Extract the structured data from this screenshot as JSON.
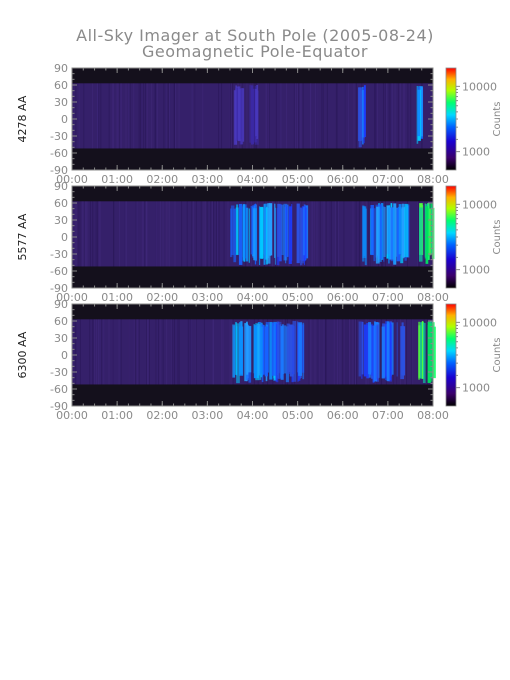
{
  "title": "All-Sky Imager at South Pole (2005-08-24)",
  "subtitle": "Geomagnetic Pole-Equator",
  "chart_data": [
    {
      "type": "heatmap",
      "ylabel": "4278 AA",
      "x_ticks": [
        "00:00",
        "01:00",
        "02:00",
        "03:00",
        "04:00",
        "05:00",
        "06:00",
        "07:00",
        "08:00"
      ],
      "y_ticks": [
        "90",
        "60",
        "30",
        "0",
        "-30",
        "-60",
        "-90"
      ],
      "xlim": [
        "00:00",
        "08:00"
      ],
      "ylim": [
        -90,
        90
      ],
      "colorbar": {
        "label": "Counts",
        "ticks": [
          "10000",
          "1000"
        ],
        "scale": "log"
      },
      "features": [
        {
          "t_start": "03:35",
          "t_end": "04:05",
          "level": "weak"
        },
        {
          "t_start": "06:20",
          "t_end": "06:30",
          "level": "medium"
        },
        {
          "t_start": "07:35",
          "t_end": "07:45",
          "level": "strong"
        }
      ]
    },
    {
      "type": "heatmap",
      "ylabel": "5577 AA",
      "x_ticks": [
        "00:00",
        "01:00",
        "02:00",
        "03:00",
        "04:00",
        "05:00",
        "06:00",
        "07:00",
        "08:00"
      ],
      "y_ticks": [
        "90",
        "60",
        "30",
        "0",
        "-30",
        "-60",
        "-90"
      ],
      "xlim": [
        "00:00",
        "08:00"
      ],
      "ylim": [
        -90,
        90
      ],
      "colorbar": {
        "label": "Counts",
        "ticks": [
          "10000",
          "1000"
        ],
        "scale": "log"
      },
      "features": [
        {
          "t_start": "03:30",
          "t_end": "04:30",
          "level": "strong"
        },
        {
          "t_start": "04:30",
          "t_end": "05:10",
          "level": "medium"
        },
        {
          "t_start": "06:25",
          "t_end": "07:25",
          "level": "strong"
        },
        {
          "t_start": "07:40",
          "t_end": "08:00",
          "level": "very-strong"
        }
      ]
    },
    {
      "type": "heatmap",
      "ylabel": "6300 AA",
      "x_ticks": [
        "00:00",
        "01:00",
        "02:00",
        "03:00",
        "04:00",
        "05:00",
        "06:00",
        "07:00",
        "08:00"
      ],
      "y_ticks": [
        "90",
        "60",
        "30",
        "0",
        "-30",
        "-60",
        "-90"
      ],
      "xlim": [
        "00:00",
        "08:00"
      ],
      "ylim": [
        -90,
        90
      ],
      "colorbar": {
        "label": "Counts",
        "ticks": [
          "10000",
          "1000"
        ],
        "scale": "log"
      },
      "features": [
        {
          "t_start": "03:30",
          "t_end": "04:30",
          "level": "strong"
        },
        {
          "t_start": "04:30",
          "t_end": "05:10",
          "level": "medium"
        },
        {
          "t_start": "06:20",
          "t_end": "07:20",
          "level": "medium"
        },
        {
          "t_start": "07:40",
          "t_end": "08:00",
          "level": "very-strong"
        }
      ]
    }
  ]
}
